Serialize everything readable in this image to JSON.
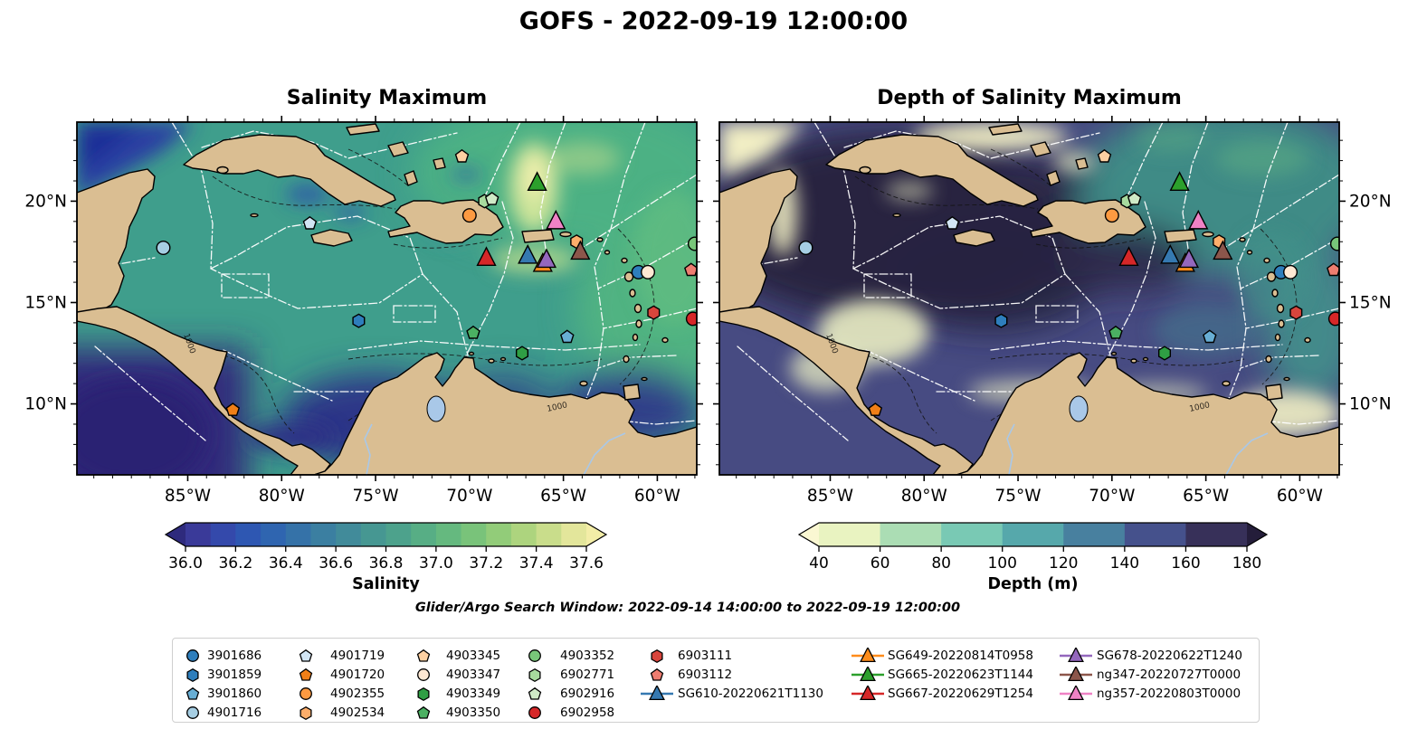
{
  "title": "GOFS - 2022-09-19 12:00:00",
  "search_window": "Glider/Argo Search Window: 2022-09-14 14:00:00 to 2022-09-19 12:00:00",
  "contour_label": "1000",
  "chart_data": {
    "type": "heatmap",
    "description": "Two geographic map panels of the Caribbean Sea with float/glider position markers",
    "panels": [
      {
        "title": "Salinity Maximum",
        "colorbar": {
          "label": "Salinity",
          "tick_labels": [
            "36.0",
            "36.2",
            "36.4",
            "36.6",
            "36.8",
            "37.0",
            "37.2",
            "37.4",
            "37.6"
          ],
          "segment_colors": [
            "#3a3a99",
            "#3449ab",
            "#2e57b2",
            "#2f65b0",
            "#3572a8",
            "#3b7fa1",
            "#418b9a",
            "#469792",
            "#4da28c",
            "#57ae85",
            "#65b97f",
            "#79c37a",
            "#92cc79",
            "#add47e",
            "#c9dd8b",
            "#e3e69b"
          ],
          "under_color": "#2e2a7d",
          "over_color": "#f3eda7"
        }
      },
      {
        "title": "Depth of Salinity Maximum",
        "colorbar": {
          "label": "Depth (m)",
          "tick_labels": [
            "40",
            "60",
            "80",
            "100",
            "120",
            "140",
            "160",
            "180"
          ],
          "segment_colors": [
            "#e9f3c1",
            "#abddb4",
            "#79c9b4",
            "#56a8ab",
            "#48809f",
            "#45518c",
            "#373059"
          ],
          "under_color": "#faf7d2",
          "over_color": "#241d3a"
        }
      }
    ],
    "axes": {
      "xtick_labels": [
        "85°W",
        "80°W",
        "75°W",
        "70°W",
        "65°W",
        "60°W"
      ],
      "xtick_lons": [
        -85,
        -80,
        -75,
        -70,
        -65,
        -60
      ],
      "ytick_labels": [
        "20°N",
        "15°N",
        "10°N"
      ],
      "ytick_lats": [
        20,
        15,
        10
      ],
      "extent": {
        "west": -90.9,
        "east": -57.9,
        "south": 6.5,
        "north": 23.9
      }
    },
    "floats": [
      {
        "id": "3901686",
        "shape": "circle",
        "color": "#2e7ebc",
        "lon": -61.0,
        "lat": 16.5
      },
      {
        "id": "3901859",
        "shape": "hexagon",
        "color": "#2e7ebc",
        "lon": -75.9,
        "lat": 14.1
      },
      {
        "id": "3901860",
        "shape": "pentagon",
        "color": "#68aed4",
        "lon": -64.8,
        "lat": 13.3
      },
      {
        "id": "4901716",
        "shape": "circle",
        "color": "#a6cee3",
        "lon": -86.3,
        "lat": 17.7
      },
      {
        "id": "4901719",
        "shape": "pentagon",
        "color": "#d2e5f4",
        "lon": -78.5,
        "lat": 18.9
      },
      {
        "id": "4901720",
        "shape": "pentagon",
        "color": "#f07f17",
        "lon": -82.6,
        "lat": 9.7
      },
      {
        "id": "4902355",
        "shape": "circle",
        "color": "#fd9a41",
        "lon": -70.0,
        "lat": 19.3
      },
      {
        "id": "4902534",
        "shape": "hexagon",
        "color": "#fdae6b",
        "lon": -64.3,
        "lat": 18.0
      },
      {
        "id": "4903345",
        "shape": "pentagon",
        "color": "#fdd0a2",
        "lon": -70.4,
        "lat": 22.2
      },
      {
        "id": "4903347",
        "shape": "circle",
        "color": "#fee8d3",
        "lon": -60.5,
        "lat": 16.5
      },
      {
        "id": "4903349",
        "shape": "hexagon",
        "color": "#2f9e44",
        "lon": -67.2,
        "lat": 12.5
      },
      {
        "id": "4903350",
        "shape": "pentagon",
        "color": "#4bb062",
        "lon": -69.8,
        "lat": 13.5
      },
      {
        "id": "4903352",
        "shape": "circle",
        "color": "#78c679",
        "lon": -58.0,
        "lat": 17.9
      },
      {
        "id": "6902771",
        "shape": "hexagon",
        "color": "#a8db9e",
        "lon": -69.2,
        "lat": 20.0
      },
      {
        "id": "6902916",
        "shape": "pentagon",
        "color": "#cfeac6",
        "lon": -68.8,
        "lat": 20.1
      },
      {
        "id": "6902958",
        "shape": "circle",
        "color": "#d62728",
        "lon": -58.1,
        "lat": 14.2
      },
      {
        "id": "6903111",
        "shape": "hexagon",
        "color": "#d8453c",
        "lon": -60.2,
        "lat": 14.5
      },
      {
        "id": "6903112",
        "shape": "pentagon",
        "color": "#ee7d70",
        "lon": -58.2,
        "lat": 16.6
      }
    ],
    "gliders": [
      {
        "id": "SG610-20220621T1130",
        "color": "#3579b1",
        "lon": -66.9,
        "lat": 17.3
      },
      {
        "id": "SG649-20220814T0958",
        "color": "#ff8c1a",
        "lon": -66.1,
        "lat": 16.9
      },
      {
        "id": "SG665-20220623T1144",
        "color": "#2ca02c",
        "lon": -66.4,
        "lat": 20.9
      },
      {
        "id": "SG667-20220629T1254",
        "color": "#d62728",
        "lon": -69.1,
        "lat": 17.2
      },
      {
        "id": "SG678-20220622T1240",
        "color": "#9467bd",
        "lon": -65.9,
        "lat": 17.1
      },
      {
        "id": "ng347-20220727T0000",
        "color": "#8c564b",
        "lon": -64.1,
        "lat": 17.5
      },
      {
        "id": "ng357-20220803T0000",
        "color": "#ef82c5",
        "lon": -65.4,
        "lat": 19.0
      }
    ]
  }
}
